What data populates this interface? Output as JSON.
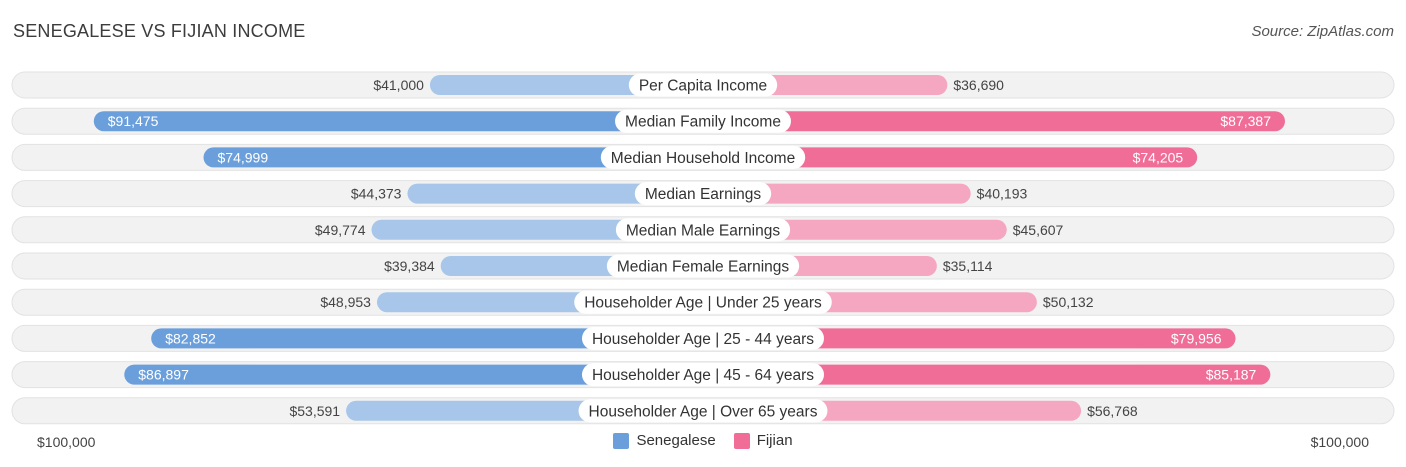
{
  "title": "SENEGALESE VS FIJIAN INCOME",
  "source": "Source: ZipAtlas.com",
  "axis": {
    "left_label": "$100,000",
    "right_label": "$100,000"
  },
  "colors": {
    "senegalese_strong": "#6a9fdc",
    "senegalese_light": "#a7c6ea",
    "fijian_strong": "#f06d98",
    "fijian_light": "#f5a6c0",
    "track": "#efefef"
  },
  "chart_data": {
    "type": "bar",
    "orientation": "horizontal-diverging",
    "xlim": [
      0,
      100000
    ],
    "categories": [
      "Per Capita Income",
      "Median Family Income",
      "Median Household Income",
      "Median Earnings",
      "Median Male Earnings",
      "Median Female Earnings",
      "Householder Age | Under 25 years",
      "Householder Age | 25 - 44 years",
      "Householder Age | 45 - 64 years",
      "Householder Age | Over 65 years"
    ],
    "series": [
      {
        "name": "Senegalese",
        "values": [
          41000,
          91475,
          74999,
          44373,
          49774,
          39384,
          48953,
          82852,
          86897,
          53591
        ],
        "labels": [
          "$41,000",
          "$91,475",
          "$74,999",
          "$44,373",
          "$49,774",
          "$39,384",
          "$48,953",
          "$82,852",
          "$86,897",
          "$53,591"
        ]
      },
      {
        "name": "Fijian",
        "values": [
          36690,
          87387,
          74205,
          40193,
          45607,
          35114,
          50132,
          79956,
          85187,
          56768
        ],
        "labels": [
          "$36,690",
          "$87,387",
          "$74,205",
          "$40,193",
          "$45,607",
          "$35,114",
          "$50,132",
          "$79,956",
          "$85,187",
          "$56,768"
        ]
      }
    ],
    "legend_position": "bottom-center"
  }
}
